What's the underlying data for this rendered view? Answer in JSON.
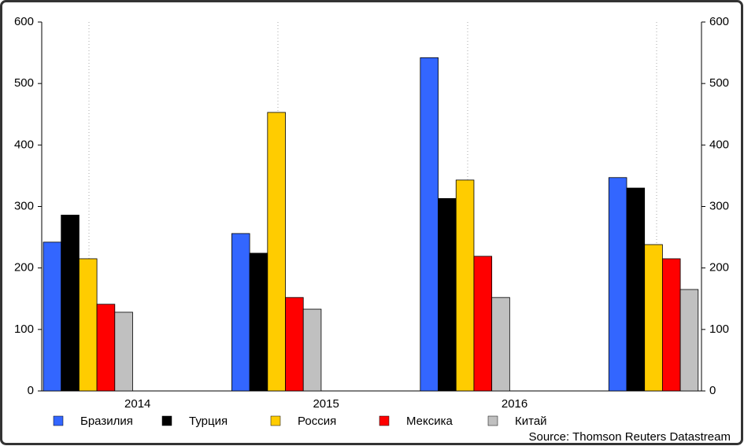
{
  "chart_data": {
    "type": "bar",
    "categories": [
      null,
      null,
      null,
      null
    ],
    "xticks": [
      "2014",
      "2015",
      "2016"
    ],
    "series": [
      {
        "name": "Бразилия",
        "color": "#3366ff",
        "values": [
          242,
          256,
          542,
          347
        ]
      },
      {
        "name": "Турция",
        "color": "#000000",
        "values": [
          286,
          224,
          313,
          330
        ]
      },
      {
        "name": "Россия",
        "color": "#ffcc00",
        "values": [
          215,
          453,
          343,
          238
        ]
      },
      {
        "name": "Мексика",
        "color": "#ff0000",
        "values": [
          141,
          152,
          219,
          215
        ]
      },
      {
        "name": "Китай",
        "color": "#c0c0c0",
        "values": [
          128,
          133,
          152,
          165
        ]
      }
    ],
    "ylim": [
      0,
      600
    ],
    "yticks": [
      0,
      100,
      200,
      300,
      400,
      500,
      600
    ],
    "y2lim": [
      0,
      600
    ],
    "y2ticks": [
      0,
      100,
      200,
      300,
      400,
      500,
      600
    ],
    "legend": "bottom",
    "source": "Source: Thomson Reuters Datastream"
  }
}
